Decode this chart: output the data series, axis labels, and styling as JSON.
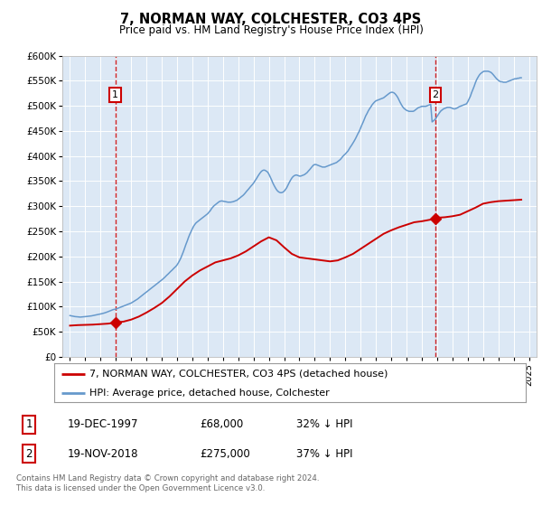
{
  "title": "7, NORMAN WAY, COLCHESTER, CO3 4PS",
  "subtitle": "Price paid vs. HM Land Registry's House Price Index (HPI)",
  "legend_line1": "7, NORMAN WAY, COLCHESTER, CO3 4PS (detached house)",
  "legend_line2": "HPI: Average price, detached house, Colchester",
  "footnote": "Contains HM Land Registry data © Crown copyright and database right 2024.\nThis data is licensed under the Open Government Licence v3.0.",
  "sale1_label": "1",
  "sale1_date": "19-DEC-1997",
  "sale1_price": "£68,000",
  "sale1_hpi": "32% ↓ HPI",
  "sale1_x": 1997.96,
  "sale1_y": 68000,
  "sale2_label": "2",
  "sale2_date": "19-NOV-2018",
  "sale2_price": "£275,000",
  "sale2_hpi": "37% ↓ HPI",
  "sale2_x": 2018.88,
  "sale2_y": 275000,
  "red_color": "#cc0000",
  "blue_color": "#6699cc",
  "plot_bg": "#dce8f5",
  "ylim": [
    0,
    600000
  ],
  "xlim": [
    1994.5,
    2025.5
  ],
  "yticks": [
    0,
    50000,
    100000,
    150000,
    200000,
    250000,
    300000,
    350000,
    400000,
    450000,
    500000,
    550000,
    600000
  ],
  "ytick_labels": [
    "£0",
    "£50K",
    "£100K",
    "£150K",
    "£200K",
    "£250K",
    "£300K",
    "£350K",
    "£400K",
    "£450K",
    "£500K",
    "£550K",
    "£600K"
  ],
  "xticks": [
    1995,
    1996,
    1997,
    1998,
    1999,
    2000,
    2001,
    2002,
    2003,
    2004,
    2005,
    2006,
    2007,
    2008,
    2009,
    2010,
    2011,
    2012,
    2013,
    2014,
    2015,
    2016,
    2017,
    2018,
    2019,
    2020,
    2021,
    2022,
    2023,
    2024,
    2025
  ],
  "hpi_x": [
    1995.0,
    1995.08,
    1995.17,
    1995.25,
    1995.33,
    1995.42,
    1995.5,
    1995.58,
    1995.67,
    1995.75,
    1995.83,
    1995.92,
    1996.0,
    1996.08,
    1996.17,
    1996.25,
    1996.33,
    1996.42,
    1996.5,
    1996.58,
    1996.67,
    1996.75,
    1996.83,
    1996.92,
    1997.0,
    1997.08,
    1997.17,
    1997.25,
    1997.33,
    1997.42,
    1997.5,
    1997.58,
    1997.67,
    1997.75,
    1997.83,
    1997.92,
    1998.0,
    1998.08,
    1998.17,
    1998.25,
    1998.33,
    1998.42,
    1998.5,
    1998.58,
    1998.67,
    1998.75,
    1998.83,
    1998.92,
    1999.0,
    1999.08,
    1999.17,
    1999.25,
    1999.33,
    1999.42,
    1999.5,
    1999.58,
    1999.67,
    1999.75,
    1999.83,
    1999.92,
    2000.0,
    2000.08,
    2000.17,
    2000.25,
    2000.33,
    2000.42,
    2000.5,
    2000.58,
    2000.67,
    2000.75,
    2000.83,
    2000.92,
    2001.0,
    2001.08,
    2001.17,
    2001.25,
    2001.33,
    2001.42,
    2001.5,
    2001.58,
    2001.67,
    2001.75,
    2001.83,
    2001.92,
    2002.0,
    2002.08,
    2002.17,
    2002.25,
    2002.33,
    2002.42,
    2002.5,
    2002.58,
    2002.67,
    2002.75,
    2002.83,
    2002.92,
    2003.0,
    2003.08,
    2003.17,
    2003.25,
    2003.33,
    2003.42,
    2003.5,
    2003.58,
    2003.67,
    2003.75,
    2003.83,
    2003.92,
    2004.0,
    2004.08,
    2004.17,
    2004.25,
    2004.33,
    2004.42,
    2004.5,
    2004.58,
    2004.67,
    2004.75,
    2004.83,
    2004.92,
    2005.0,
    2005.08,
    2005.17,
    2005.25,
    2005.33,
    2005.42,
    2005.5,
    2005.58,
    2005.67,
    2005.75,
    2005.83,
    2005.92,
    2006.0,
    2006.08,
    2006.17,
    2006.25,
    2006.33,
    2006.42,
    2006.5,
    2006.58,
    2006.67,
    2006.75,
    2006.83,
    2006.92,
    2007.0,
    2007.08,
    2007.17,
    2007.25,
    2007.33,
    2007.42,
    2007.5,
    2007.58,
    2007.67,
    2007.75,
    2007.83,
    2007.92,
    2008.0,
    2008.08,
    2008.17,
    2008.25,
    2008.33,
    2008.42,
    2008.5,
    2008.58,
    2008.67,
    2008.75,
    2008.83,
    2008.92,
    2009.0,
    2009.08,
    2009.17,
    2009.25,
    2009.33,
    2009.42,
    2009.5,
    2009.58,
    2009.67,
    2009.75,
    2009.83,
    2009.92,
    2010.0,
    2010.08,
    2010.17,
    2010.25,
    2010.33,
    2010.42,
    2010.5,
    2010.58,
    2010.67,
    2010.75,
    2010.83,
    2010.92,
    2011.0,
    2011.08,
    2011.17,
    2011.25,
    2011.33,
    2011.42,
    2011.5,
    2011.58,
    2011.67,
    2011.75,
    2011.83,
    2011.92,
    2012.0,
    2012.08,
    2012.17,
    2012.25,
    2012.33,
    2012.42,
    2012.5,
    2012.58,
    2012.67,
    2012.75,
    2012.83,
    2012.92,
    2013.0,
    2013.08,
    2013.17,
    2013.25,
    2013.33,
    2013.42,
    2013.5,
    2013.58,
    2013.67,
    2013.75,
    2013.83,
    2013.92,
    2014.0,
    2014.08,
    2014.17,
    2014.25,
    2014.33,
    2014.42,
    2014.5,
    2014.58,
    2014.67,
    2014.75,
    2014.83,
    2014.92,
    2015.0,
    2015.08,
    2015.17,
    2015.25,
    2015.33,
    2015.42,
    2015.5,
    2015.58,
    2015.67,
    2015.75,
    2015.83,
    2015.92,
    2016.0,
    2016.08,
    2016.17,
    2016.25,
    2016.33,
    2016.42,
    2016.5,
    2016.58,
    2016.67,
    2016.75,
    2016.83,
    2016.92,
    2017.0,
    2017.08,
    2017.17,
    2017.25,
    2017.33,
    2017.42,
    2017.5,
    2017.58,
    2017.67,
    2017.75,
    2017.83,
    2017.92,
    2018.0,
    2018.08,
    2018.17,
    2018.25,
    2018.33,
    2018.42,
    2018.5,
    2018.58,
    2018.67,
    2018.75,
    2018.83,
    2018.92,
    2019.0,
    2019.08,
    2019.17,
    2019.25,
    2019.33,
    2019.42,
    2019.5,
    2019.58,
    2019.67,
    2019.75,
    2019.83,
    2019.92,
    2020.0,
    2020.08,
    2020.17,
    2020.25,
    2020.33,
    2020.42,
    2020.5,
    2020.58,
    2020.67,
    2020.75,
    2020.83,
    2020.92,
    2021.0,
    2021.08,
    2021.17,
    2021.25,
    2021.33,
    2021.42,
    2021.5,
    2021.58,
    2021.67,
    2021.75,
    2021.83,
    2021.92,
    2022.0,
    2022.08,
    2022.17,
    2022.25,
    2022.33,
    2022.42,
    2022.5,
    2022.58,
    2022.67,
    2022.75,
    2022.83,
    2022.92,
    2023.0,
    2023.08,
    2023.17,
    2023.25,
    2023.33,
    2023.42,
    2023.5,
    2023.58,
    2023.67,
    2023.75,
    2023.83,
    2023.92,
    2024.0,
    2024.08,
    2024.17,
    2024.25,
    2024.33,
    2024.42,
    2024.5
  ],
  "hpi_y": [
    82000,
    81500,
    81000,
    80500,
    80000,
    79800,
    79500,
    79300,
    79000,
    79200,
    79500,
    79800,
    80000,
    80200,
    80500,
    80800,
    81000,
    81500,
    82000,
    82500,
    83000,
    83500,
    84000,
    84500,
    85000,
    85800,
    86500,
    87200,
    88000,
    89000,
    90000,
    91000,
    92000,
    93000,
    94000,
    94500,
    95000,
    96000,
    97000,
    98000,
    99000,
    100000,
    101000,
    102000,
    103000,
    104000,
    105000,
    106000,
    107000,
    108500,
    110000,
    111500,
    113000,
    115000,
    117000,
    119000,
    121000,
    123000,
    125000,
    127000,
    129000,
    131000,
    133000,
    135000,
    137000,
    139000,
    141000,
    143000,
    145000,
    147000,
    149000,
    151000,
    153000,
    155000,
    157500,
    160000,
    162500,
    165000,
    167500,
    170000,
    172500,
    175000,
    177500,
    180000,
    183000,
    187000,
    192000,
    197000,
    203000,
    210000,
    217000,
    224000,
    231000,
    238000,
    244000,
    250000,
    255000,
    260000,
    264000,
    267000,
    269000,
    271000,
    273000,
    275000,
    277000,
    279000,
    281000,
    283000,
    285000,
    288000,
    291000,
    295000,
    298000,
    301000,
    303000,
    305000,
    307000,
    309000,
    310000,
    310500,
    310000,
    309500,
    309000,
    308500,
    308000,
    308000,
    308000,
    308500,
    309000,
    310000,
    311000,
    312000,
    314000,
    316000,
    318000,
    320000,
    322000,
    325000,
    328000,
    331000,
    334000,
    337000,
    340000,
    343000,
    346000,
    350000,
    354000,
    358000,
    362000,
    366000,
    369000,
    371000,
    372000,
    371500,
    370000,
    368000,
    364000,
    359000,
    353000,
    347000,
    342000,
    337000,
    333000,
    330000,
    328000,
    327000,
    327000,
    328000,
    330000,
    333000,
    337000,
    342000,
    347000,
    352000,
    356000,
    359000,
    361000,
    362000,
    362000,
    361000,
    360000,
    360000,
    361000,
    362000,
    363000,
    365000,
    367000,
    370000,
    373000,
    376000,
    379000,
    382000,
    383000,
    383000,
    382000,
    381000,
    380000,
    379000,
    378000,
    378000,
    378000,
    379000,
    380000,
    381000,
    382000,
    383000,
    384000,
    385000,
    386000,
    387000,
    389000,
    391000,
    393000,
    396000,
    399000,
    402000,
    404000,
    407000,
    410000,
    414000,
    418000,
    422000,
    426000,
    430000,
    435000,
    440000,
    445000,
    450000,
    456000,
    462000,
    468000,
    474000,
    480000,
    485000,
    490000,
    494000,
    498000,
    502000,
    505000,
    508000,
    510000,
    511000,
    512000,
    513000,
    514000,
    515000,
    516000,
    518000,
    520000,
    522000,
    524000,
    526000,
    527000,
    527000,
    526000,
    524000,
    521000,
    517000,
    512000,
    507000,
    502000,
    498000,
    495000,
    493000,
    491000,
    490000,
    489000,
    489000,
    489000,
    489000,
    490000,
    492000,
    494000,
    496000,
    497000,
    498000,
    499000,
    499000,
    499000,
    499000,
    500000,
    501000,
    502000,
    503000,
    468000,
    470000,
    472000,
    475000,
    479000,
    483000,
    487000,
    490000,
    492000,
    494000,
    495000,
    496000,
    497000,
    497000,
    497000,
    496000,
    495000,
    494000,
    494000,
    495000,
    496000,
    498000,
    499000,
    500000,
    501000,
    502000,
    503000,
    504000,
    508000,
    513000,
    519000,
    526000,
    532000,
    539000,
    546000,
    552000,
    557000,
    561000,
    564000,
    566000,
    568000,
    569000,
    569000,
    569000,
    569000,
    568000,
    567000,
    565000,
    562000,
    559000,
    556000,
    553000,
    551000,
    549000,
    548000,
    548000,
    547000,
    547000,
    547000,
    548000,
    549000,
    550000,
    551000,
    552000,
    553000,
    554000,
    554000,
    555000,
    555000,
    556000,
    556000,
    557000,
    558000,
    559000,
    560000,
    561000,
    562000,
    563000,
    564000
  ],
  "red_x": [
    1995.0,
    1995.5,
    1996.0,
    1996.5,
    1997.0,
    1997.5,
    1997.96,
    1998.0,
    1998.5,
    1999.0,
    1999.5,
    2000.0,
    2000.5,
    2001.0,
    2001.5,
    2002.0,
    2002.5,
    2003.0,
    2003.5,
    2004.0,
    2004.5,
    2005.0,
    2005.5,
    2006.0,
    2006.5,
    2007.0,
    2007.5,
    2008.0,
    2008.5,
    2009.0,
    2009.5,
    2010.0,
    2010.5,
    2011.0,
    2011.5,
    2012.0,
    2012.5,
    2013.0,
    2013.5,
    2014.0,
    2014.5,
    2015.0,
    2015.5,
    2016.0,
    2016.5,
    2017.0,
    2017.5,
    2018.0,
    2018.88,
    2019.0,
    2019.5,
    2020.0,
    2020.5,
    2021.0,
    2021.5,
    2022.0,
    2022.5,
    2023.0,
    2023.5,
    2024.0,
    2024.5
  ],
  "red_y": [
    62000,
    63000,
    63500,
    64000,
    65000,
    66000,
    68000,
    68500,
    70000,
    74000,
    80000,
    88000,
    97000,
    107000,
    120000,
    135000,
    150000,
    162000,
    172000,
    180000,
    188000,
    192000,
    196000,
    202000,
    210000,
    220000,
    230000,
    238000,
    232000,
    218000,
    205000,
    198000,
    196000,
    194000,
    192000,
    190000,
    192000,
    198000,
    205000,
    215000,
    225000,
    235000,
    245000,
    252000,
    258000,
    263000,
    268000,
    270000,
    275000,
    277000,
    278000,
    280000,
    283000,
    290000,
    297000,
    305000,
    308000,
    310000,
    311000,
    312000,
    313000
  ]
}
